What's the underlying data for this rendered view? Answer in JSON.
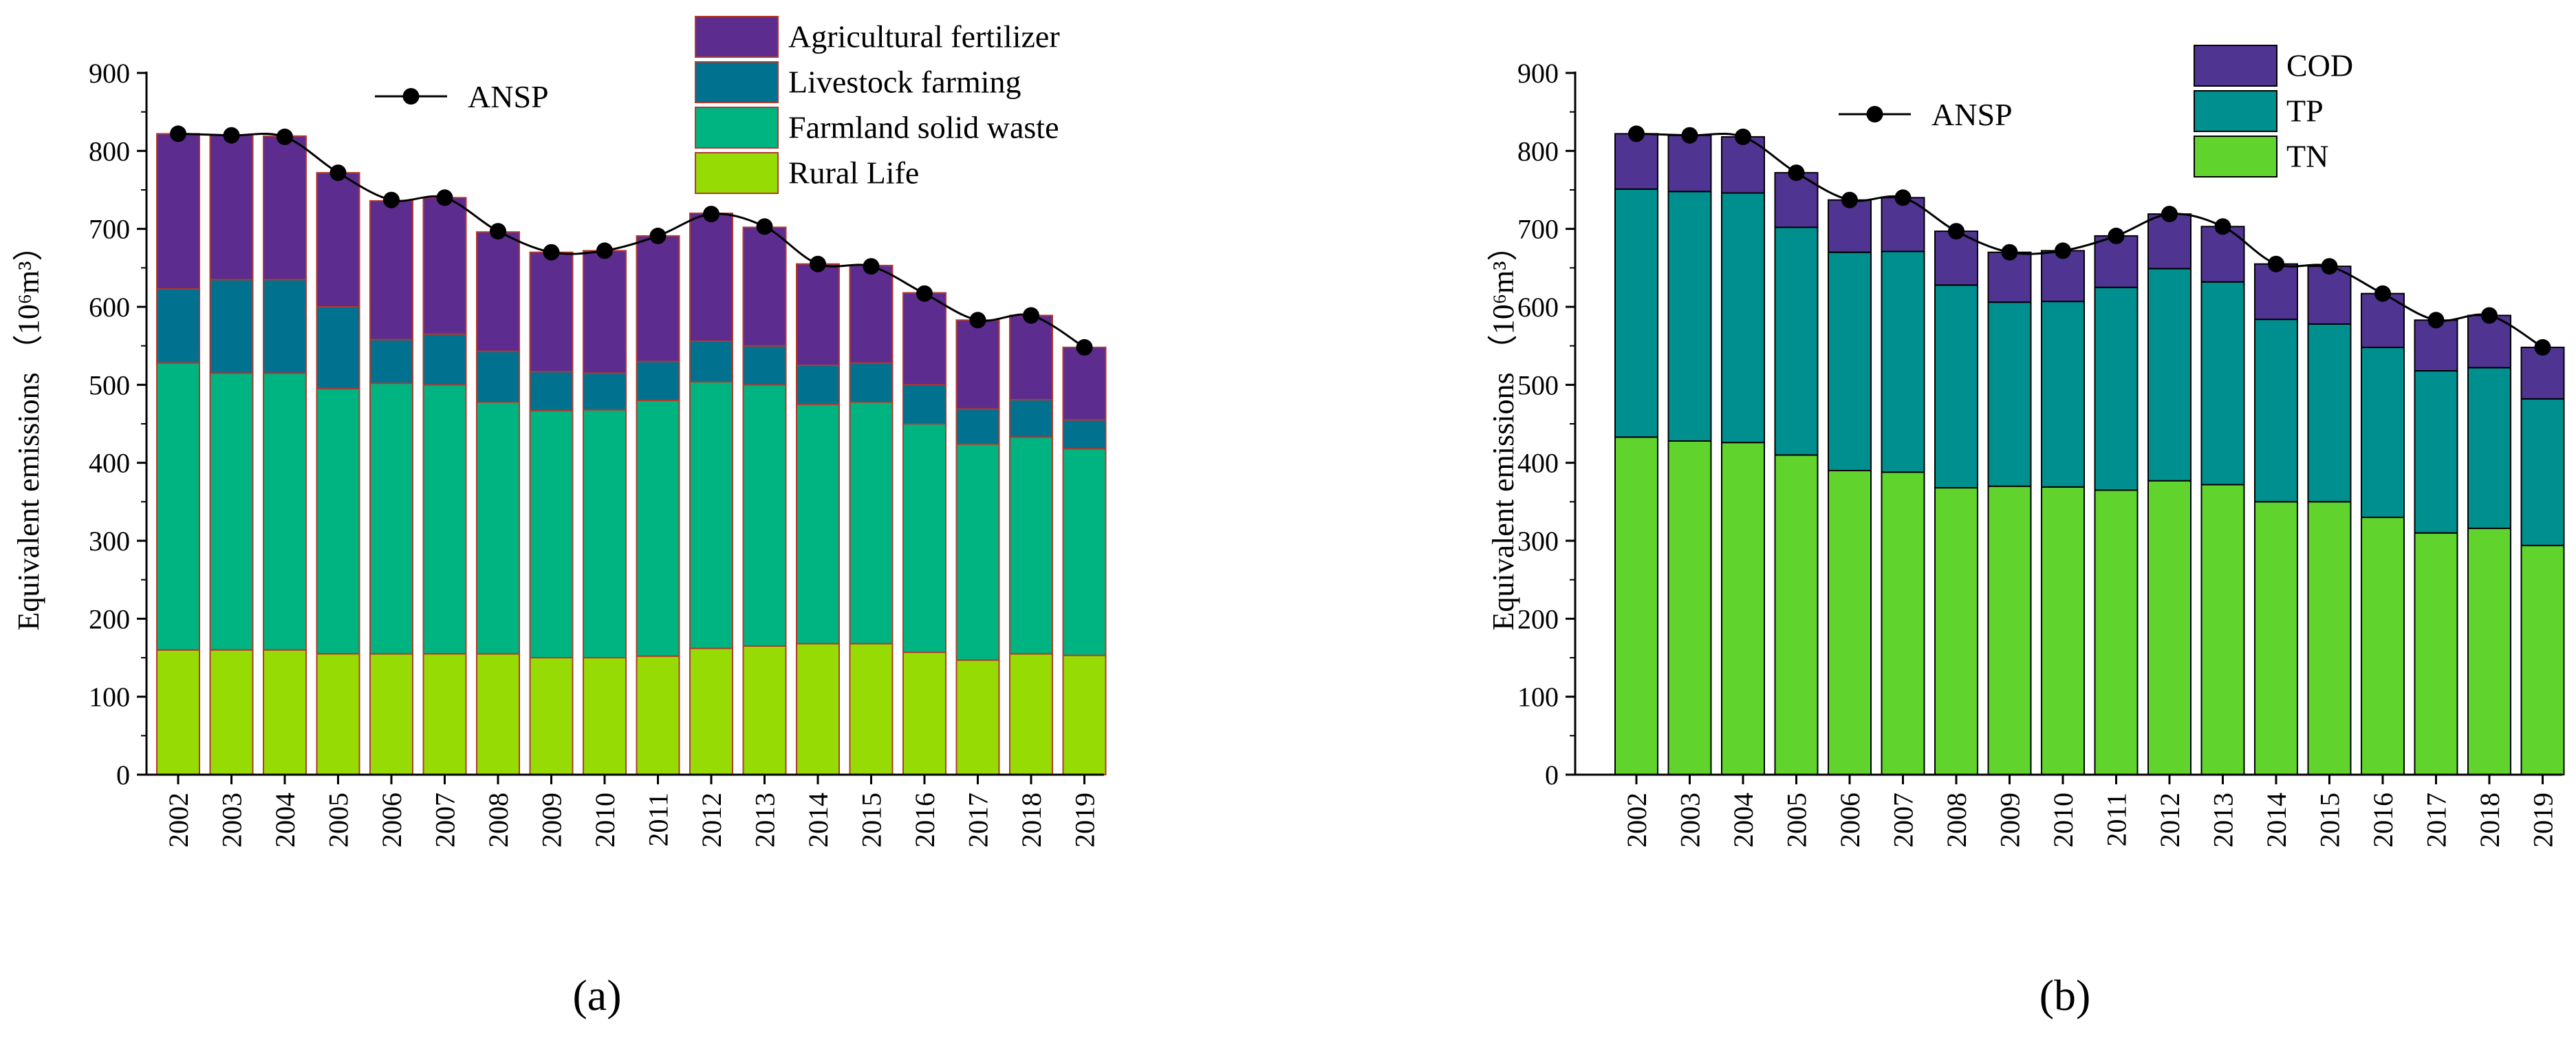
{
  "chart_data": [
    {
      "id": "a",
      "panel_label": "(a)",
      "type": "bar",
      "stacked": true,
      "categories": [
        "2002",
        "2003",
        "2004",
        "2005",
        "2006",
        "2007",
        "2008",
        "2009",
        "2010",
        "2011",
        "2012",
        "2013",
        "2014",
        "2015",
        "2016",
        "2017",
        "2018",
        "2019"
      ],
      "series": [
        {
          "name": "Rural Life",
          "color": "#96dc04",
          "values": [
            160,
            160,
            160,
            155,
            155,
            155,
            155,
            150,
            150,
            152,
            162,
            165,
            168,
            168,
            157,
            147,
            155,
            153
          ]
        },
        {
          "name": "Farmland solid waste",
          "color": "#00b482",
          "values": [
            368,
            355,
            355,
            340,
            347,
            345,
            323,
            317,
            318,
            328,
            342,
            335,
            307,
            310,
            293,
            277,
            278,
            265
          ]
        },
        {
          "name": "Livestock farming",
          "color": "#00728f",
          "values": [
            95,
            120,
            120,
            105,
            56,
            65,
            65,
            50,
            47,
            50,
            52,
            50,
            50,
            50,
            50,
            45,
            48,
            37
          ]
        },
        {
          "name": "Agricultural fertilizer",
          "color": "#5c2d8f",
          "values": [
            199,
            185,
            184,
            172,
            178,
            175,
            153,
            153,
            157,
            161,
            164,
            152,
            130,
            125,
            118,
            114,
            108,
            93
          ]
        }
      ],
      "line": {
        "name": "ANSP",
        "values": [
          822,
          820,
          818,
          772,
          737,
          740,
          697,
          670,
          672,
          691,
          719,
          703,
          655,
          652,
          617,
          583,
          589,
          548
        ]
      },
      "ylabel": "Equivalent emissions （10⁶m³）",
      "ylim": [
        0,
        900
      ],
      "yticks": [
        0,
        100,
        200,
        300,
        400,
        500,
        600,
        700,
        800,
        900
      ],
      "legend": [
        "Agricultural fertilizer",
        "Livestock farming",
        "Farmland solid waste",
        "Rural Life"
      ]
    },
    {
      "id": "b",
      "panel_label": "(b)",
      "type": "bar",
      "stacked": true,
      "categories": [
        "2002",
        "2003",
        "2004",
        "2005",
        "2006",
        "2007",
        "2008",
        "2009",
        "2010",
        "2011",
        "2012",
        "2013",
        "2014",
        "2015",
        "2016",
        "2017",
        "2018",
        "2019"
      ],
      "series": [
        {
          "name": "TN",
          "color": "#60d42c",
          "values": [
            433,
            428,
            426,
            410,
            390,
            388,
            368,
            370,
            369,
            365,
            377,
            372,
            350,
            350,
            330,
            310,
            316,
            294
          ]
        },
        {
          "name": "TP",
          "color": "#008f8f",
          "values": [
            318,
            320,
            320,
            292,
            280,
            283,
            260,
            236,
            238,
            260,
            272,
            260,
            234,
            228,
            218,
            208,
            206,
            188
          ]
        },
        {
          "name": "COD",
          "color": "#4f3591",
          "values": [
            71,
            72,
            72,
            70,
            67,
            69,
            69,
            64,
            65,
            66,
            70,
            71,
            71,
            74,
            69,
            65,
            67,
            66
          ]
        }
      ],
      "line": {
        "name": "ANSP",
        "values": [
          822,
          820,
          818,
          772,
          737,
          740,
          697,
          670,
          672,
          691,
          719,
          703,
          655,
          652,
          617,
          583,
          589,
          548
        ]
      },
      "ylabel": "Equivalent emissions （10⁶m³）",
      "ylim": [
        0,
        900
      ],
      "yticks": [
        0,
        100,
        200,
        300,
        400,
        500,
        600,
        700,
        800,
        900
      ],
      "legend": [
        "COD",
        "TP",
        "TN"
      ]
    }
  ]
}
